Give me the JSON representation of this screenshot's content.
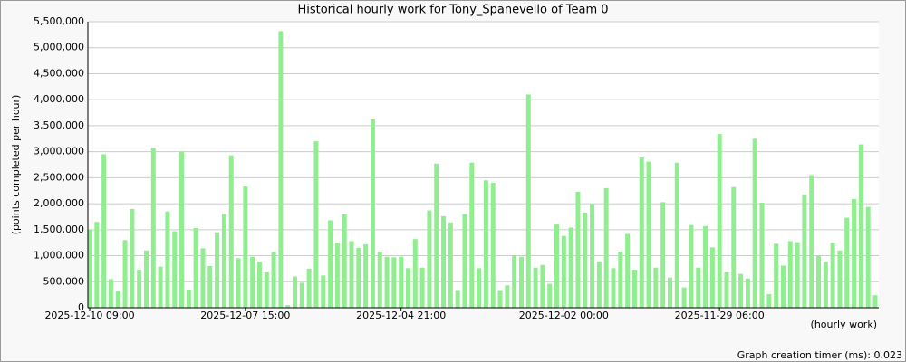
{
  "chart_data": {
    "type": "bar",
    "title": "Historical hourly work for Tony_Spanevello of Team 0",
    "ylabel": "(points completed per hour)",
    "xlabel": "(hourly work)",
    "footer": "Graph creation timer (ms): 0.023",
    "color": "#90ee90",
    "grid": true,
    "ylim": [
      0,
      5500000
    ],
    "yticks": [
      0,
      {
        "value": 500000,
        "label": "500,000"
      },
      {
        "value": 1000000,
        "label": "1,000,000"
      },
      {
        "value": 1500000,
        "label": "1,500,000"
      },
      {
        "value": 2000000,
        "label": "2,000,000"
      },
      {
        "value": 2500000,
        "label": "2,500,000"
      },
      {
        "value": 3000000,
        "label": "3,000,000"
      },
      {
        "value": 3500000,
        "label": "3,500,000"
      },
      {
        "value": 4000000,
        "label": "4,000,000"
      },
      {
        "value": 4500000,
        "label": "4,500,000"
      },
      {
        "value": 5000000,
        "label": "5,000,000"
      },
      {
        "value": 5500000,
        "label": "5,500,000"
      }
    ],
    "categories": [
      "2025-12-10 09:00",
      null,
      null,
      null,
      null,
      null,
      null,
      null,
      null,
      null,
      null,
      null,
      null,
      null,
      null,
      null,
      null,
      null,
      null,
      null,
      null,
      null,
      "2025-12-07 15:00",
      null,
      null,
      null,
      null,
      null,
      null,
      null,
      null,
      null,
      null,
      null,
      null,
      null,
      null,
      null,
      null,
      null,
      null,
      null,
      null,
      null,
      "2025-12-04 21:00",
      null,
      null,
      null,
      null,
      null,
      null,
      null,
      null,
      null,
      null,
      null,
      null,
      null,
      null,
      null,
      null,
      null,
      null,
      null,
      null,
      null,
      null,
      "2025-12-02 00:00",
      null,
      null,
      null,
      null,
      null,
      null,
      null,
      null,
      null,
      null,
      null,
      null,
      null,
      null,
      null,
      null,
      null,
      null,
      null,
      null,
      null,
      "2025-11-29 06:00",
      null,
      null,
      null,
      null,
      null,
      null,
      null,
      null,
      null,
      null,
      null,
      null,
      null,
      null,
      null,
      null,
      null,
      null,
      null,
      null,
      null,
      null
    ],
    "values": [
      1500000,
      1650000,
      2950000,
      550000,
      320000,
      1300000,
      1900000,
      730000,
      1100000,
      3080000,
      790000,
      1850000,
      1470000,
      3000000,
      350000,
      1530000,
      1140000,
      800000,
      1450000,
      1800000,
      2930000,
      950000,
      2330000,
      980000,
      880000,
      680000,
      1070000,
      5320000,
      50000,
      600000,
      480000,
      750000,
      3200000,
      620000,
      1680000,
      1250000,
      1800000,
      1280000,
      1150000,
      1220000,
      3620000,
      1080000,
      980000,
      970000,
      980000,
      760000,
      1320000,
      770000,
      1870000,
      2770000,
      1760000,
      1640000,
      340000,
      1800000,
      2790000,
      760000,
      2450000,
      2400000,
      340000,
      430000,
      1000000,
      980000,
      4100000,
      770000,
      820000,
      460000,
      1600000,
      1380000,
      1540000,
      2230000,
      1830000,
      2000000,
      890000,
      2300000,
      760000,
      1080000,
      1420000,
      730000,
      2890000,
      2810000,
      770000,
      2030000,
      580000,
      2790000,
      390000,
      1590000,
      770000,
      1570000,
      1160000,
      3340000,
      680000,
      2320000,
      650000,
      560000,
      3250000,
      2020000,
      260000,
      1230000,
      810000,
      1280000,
      1260000,
      2180000,
      2550000,
      1000000,
      880000,
      1250000,
      1100000,
      1730000,
      2090000,
      3140000,
      1940000,
      240000
    ]
  }
}
